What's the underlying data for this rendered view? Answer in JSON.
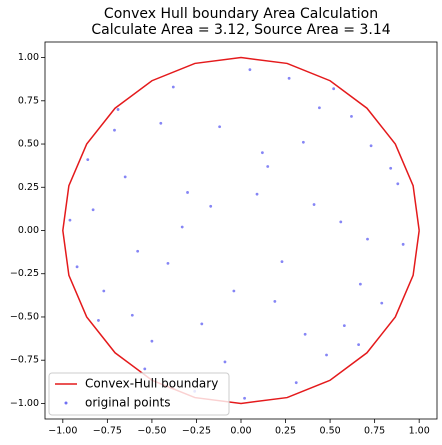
{
  "chart_data": {
    "type": "scatter",
    "title": "Convex Hull boundary Area Calculation",
    "subtitle": "Calculate Area = 3.12, Source Area = 3.14",
    "xlim": [
      -1.1,
      1.1
    ],
    "ylim": [
      -1.09,
      1.09
    ],
    "xticks": [
      {
        "value": -1,
        "label": "−1.00"
      },
      {
        "value": -0.75,
        "label": "−0.75"
      },
      {
        "value": -0.5,
        "label": "−0.50"
      },
      {
        "value": -0.25,
        "label": "−0.25"
      },
      {
        "value": 0,
        "label": "0.00"
      },
      {
        "value": 0.25,
        "label": "0.25"
      },
      {
        "value": 0.5,
        "label": "0.50"
      },
      {
        "value": 0.75,
        "label": "0.75"
      },
      {
        "value": 1,
        "label": "1.00"
      }
    ],
    "yticks": [
      {
        "value": -1,
        "label": "−1.00"
      },
      {
        "value": -0.75,
        "label": "−0.75"
      },
      {
        "value": -0.5,
        "label": "−0.50"
      },
      {
        "value": -0.25,
        "label": "−0.25"
      },
      {
        "value": 0,
        "label": "0.00"
      },
      {
        "value": 0.25,
        "label": "0.25"
      },
      {
        "value": 0.5,
        "label": "0.50"
      },
      {
        "value": 0.75,
        "label": "0.75"
      },
      {
        "value": 1,
        "label": "1.00"
      }
    ],
    "legend": "lower left",
    "series": [
      {
        "name": "Convex-Hull boundary",
        "type": "line",
        "color": "#e41a1c",
        "x": [
          1,
          0.966,
          0.866,
          0.707,
          0.5,
          0.259,
          0,
          -0.259,
          -0.5,
          -0.707,
          -0.866,
          -0.966,
          -1,
          -0.966,
          -0.866,
          -0.707,
          -0.5,
          -0.259,
          0,
          0.259,
          0.5,
          0.707,
          0.866,
          0.966,
          1
        ],
        "y": [
          0,
          0.259,
          0.5,
          0.707,
          0.866,
          0.966,
          1,
          0.966,
          0.866,
          0.707,
          0.5,
          0.259,
          0,
          -0.259,
          -0.5,
          -0.707,
          -0.866,
          -0.966,
          -1,
          -0.966,
          -0.866,
          -0.707,
          -0.5,
          -0.259,
          0
        ]
      },
      {
        "name": "original points",
        "type": "scatter",
        "color": "#3333ee",
        "x": [
          0.12,
          -0.45,
          0.67,
          -0.83,
          0.31,
          -0.22,
          0.88,
          -0.61,
          0.05,
          0.44,
          -0.71,
          0.23,
          -0.09,
          0.56,
          -0.38,
          0.79,
          -0.92,
          0.15,
          -0.54,
          0.62,
          -0.17,
          0.36,
          -0.77,
          0.91,
          -0.3,
          0.48,
          -0.65,
          0.02,
          0.73,
          -0.41,
          0.27,
          -0.86,
          0.58,
          -0.12,
          0.84,
          -0.5,
          0.19,
          -0.69,
          0.41,
          -0.26,
          0.66,
          -0.96,
          0.09,
          -0.58,
          0.35,
          -0.04,
          0.52,
          -0.8,
          0.71,
          -0.33
        ],
        "y": [
          0.45,
          0.62,
          -0.31,
          0.12,
          -0.88,
          -0.54,
          0.27,
          -0.49,
          0.93,
          0.71,
          0.58,
          -0.18,
          -0.76,
          0.05,
          0.83,
          -0.42,
          -0.21,
          0.37,
          -0.8,
          0.66,
          0.14,
          -0.6,
          -0.35,
          -0.08,
          0.22,
          -0.72,
          0.31,
          -0.97,
          0.49,
          -0.19,
          0.88,
          0.41,
          -0.55,
          0.6,
          0.36,
          -0.64,
          -0.41,
          0.7,
          0.15,
          -0.93,
          -0.66,
          0.06,
          0.21,
          -0.12,
          0.51,
          -0.35,
          0.82,
          -0.52,
          -0.05,
          0.02
        ]
      }
    ]
  }
}
